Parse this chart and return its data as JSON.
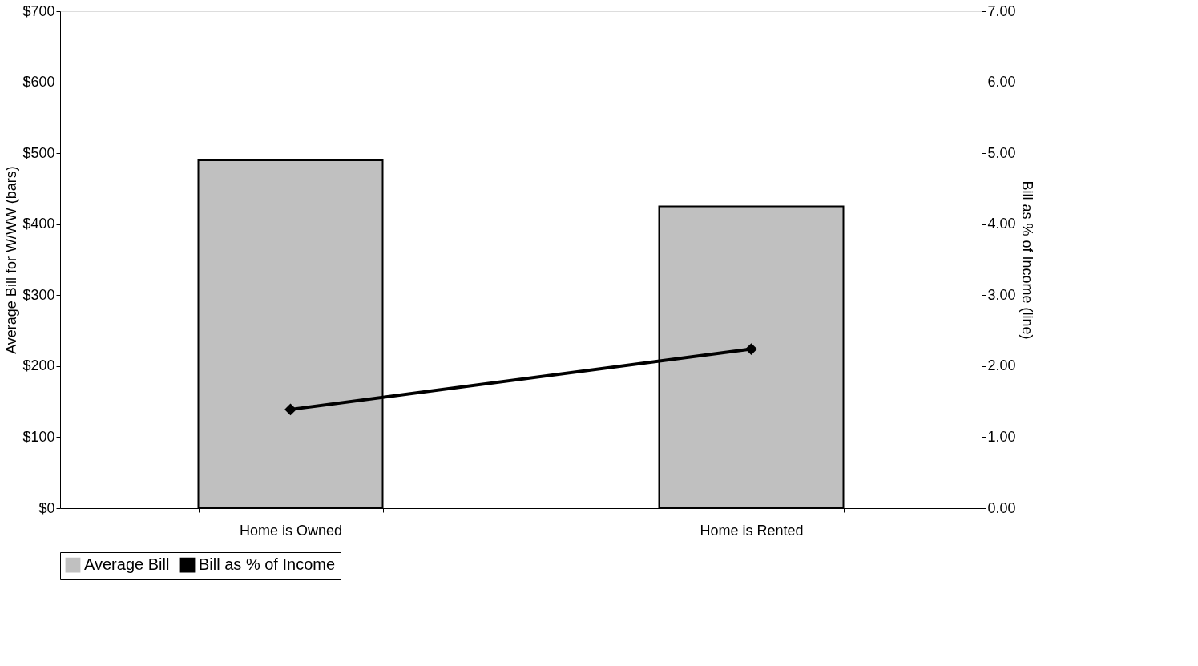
{
  "chart_data": {
    "type": "bar",
    "categories": [
      "Home is Owned",
      "Home is Rented"
    ],
    "series": [
      {
        "name": "Average Bill",
        "color": "#c0c0c0",
        "values": [
          490,
          425
        ]
      },
      {
        "name": "Bill as % of Income",
        "type": "line",
        "axis": "y2",
        "color": "#000000",
        "marker": "diamond",
        "values": [
          1.39,
          2.24
        ]
      }
    ],
    "ylabel": "Average Bill for W/WW (bars)",
    "y2label": "Bill as % of Income (line)",
    "ylim": [
      0,
      700
    ],
    "yticks": [
      {
        "value": 0,
        "label": "$0"
      },
      {
        "value": 100,
        "label": "$100"
      },
      {
        "value": 200,
        "label": "$200"
      },
      {
        "value": 300,
        "label": "$300"
      },
      {
        "value": 400,
        "label": "$400"
      },
      {
        "value": 500,
        "label": "$500"
      },
      {
        "value": 600,
        "label": "$600"
      },
      {
        "value": 700,
        "label": "$700"
      }
    ],
    "y2lim": [
      0,
      7
    ],
    "y2ticks": [
      {
        "value": 0,
        "label": "0.00"
      },
      {
        "value": 1,
        "label": "1.00"
      },
      {
        "value": 2,
        "label": "2.00"
      },
      {
        "value": 3,
        "label": "3.00"
      },
      {
        "value": 4,
        "label": "4.00"
      },
      {
        "value": 5,
        "label": "5.00"
      },
      {
        "value": 6,
        "label": "6.00"
      },
      {
        "value": 7,
        "label": "7.00"
      }
    ],
    "grid": false,
    "legend": "bottom"
  }
}
